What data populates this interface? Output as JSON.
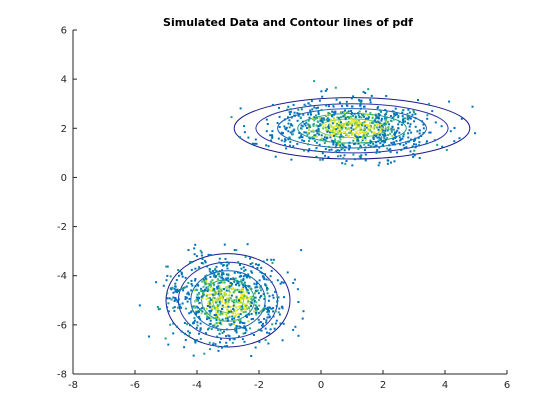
{
  "chart_data": {
    "type": "scatter",
    "title": "Simulated Data and Contour lines of pdf",
    "xlabel": "",
    "ylabel": "",
    "xlim": [
      -8,
      6
    ],
    "ylim": [
      -8,
      6
    ],
    "xticks": [
      -8,
      -6,
      -4,
      -2,
      0,
      2,
      4,
      6
    ],
    "yticks": [
      -8,
      -6,
      -4,
      -2,
      0,
      2,
      4,
      6
    ],
    "grid": false,
    "legend": "none",
    "series": [
      {
        "cluster_center": [
          1.0,
          2.0
        ],
        "std": [
          1.25,
          0.55
        ],
        "approx_points": 900,
        "x_extent": [
          -2.9,
          5.6
        ],
        "y_extent": [
          -0.2,
          4.4
        ]
      },
      {
        "cluster_center": [
          -3.0,
          -5.0
        ],
        "std": [
          0.95,
          0.85
        ],
        "approx_points": 900,
        "x_extent": [
          -6.0,
          0.3
        ],
        "y_extent": [
          -7.6,
          -2.6
        ]
      }
    ],
    "contours": [
      {
        "center": [
          1.0,
          2.0
        ],
        "radii": [
          [
            3.8,
            1.25
          ],
          [
            3.1,
            1.0
          ],
          [
            2.4,
            0.8
          ],
          [
            1.75,
            0.6
          ],
          [
            1.1,
            0.38
          ],
          [
            0.6,
            0.22
          ]
        ]
      },
      {
        "center": [
          -3.0,
          -5.0
        ],
        "radii": [
          [
            2.0,
            1.9
          ],
          [
            1.6,
            1.55
          ],
          [
            1.2,
            1.2
          ],
          [
            0.85,
            0.85
          ],
          [
            0.5,
            0.5
          ]
        ]
      }
    ],
    "colors": {
      "point_colors": [
        "#0072bd",
        "#1f9e89",
        "#3cbb75",
        "#b5de2b",
        "#fde725"
      ],
      "contour_colors": [
        "#1a1a8c",
        "#2c2ca6",
        "#1e5fb4",
        "#1f9e89",
        "#6ccd5a",
        "#e5e419"
      ],
      "axis": "#262626"
    }
  }
}
